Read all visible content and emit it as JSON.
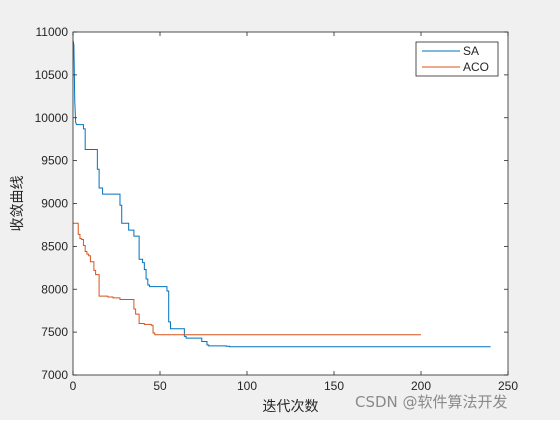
{
  "chart_data": {
    "type": "line",
    "title": "",
    "xlabel": "迭代次数",
    "ylabel": "收敛曲线",
    "xlim": [
      0,
      250
    ],
    "ylim": [
      7000,
      11000
    ],
    "xticks": [
      0,
      50,
      100,
      150,
      200,
      250
    ],
    "yticks": [
      7000,
      7500,
      8000,
      8500,
      9000,
      9500,
      10000,
      10500,
      11000
    ],
    "grid": false,
    "legend_position": "top-right",
    "series": [
      {
        "name": "SA",
        "color": "#0072BD",
        "x": [
          0,
          0.5,
          1,
          1.5,
          2,
          3,
          3,
          6,
          6,
          7,
          7,
          14,
          14,
          15,
          15,
          17,
          17,
          27,
          27,
          28,
          28,
          32,
          32,
          35,
          35,
          38,
          38,
          40,
          40,
          41,
          41,
          42,
          42,
          43,
          43,
          44,
          44,
          54,
          54,
          55,
          55,
          56,
          56,
          64,
          64,
          65,
          65,
          74,
          74,
          77,
          77,
          78,
          78,
          88,
          88,
          90,
          90,
          240
        ],
        "y": [
          10900,
          10850,
          10200,
          9950,
          9920,
          9920,
          9920,
          9920,
          9870,
          9870,
          9630,
          9630,
          9400,
          9400,
          9180,
          9180,
          9110,
          9110,
          8980,
          8980,
          8770,
          8770,
          8690,
          8690,
          8620,
          8620,
          8350,
          8350,
          8310,
          8310,
          8230,
          8230,
          8120,
          8120,
          8050,
          8050,
          8030,
          8030,
          7980,
          7980,
          7620,
          7620,
          7540,
          7540,
          7450,
          7450,
          7430,
          7430,
          7390,
          7390,
          7350,
          7350,
          7340,
          7340,
          7335,
          7335,
          7330,
          7330
        ]
      },
      {
        "name": "ACO",
        "color": "#D95319",
        "x": [
          0,
          3,
          3,
          4,
          4,
          5,
          5,
          6,
          6,
          7,
          7,
          8,
          8,
          9,
          9,
          10,
          10,
          12,
          12,
          13,
          13,
          15,
          15,
          20,
          20,
          23,
          23,
          27,
          27,
          35,
          35,
          36,
          36,
          38,
          38,
          41,
          41,
          45,
          45,
          46,
          46,
          47,
          47,
          200
        ],
        "y": [
          8770,
          8770,
          8640,
          8640,
          8590,
          8590,
          8580,
          8580,
          8510,
          8510,
          8440,
          8440,
          8410,
          8410,
          8390,
          8390,
          8320,
          8320,
          8220,
          8220,
          8170,
          8170,
          7920,
          7920,
          7910,
          7910,
          7900,
          7900,
          7880,
          7880,
          7770,
          7770,
          7710,
          7710,
          7600,
          7600,
          7590,
          7590,
          7580,
          7580,
          7490,
          7490,
          7470,
          7470
        ]
      }
    ]
  },
  "watermark": "CSDN @软件算法开发"
}
